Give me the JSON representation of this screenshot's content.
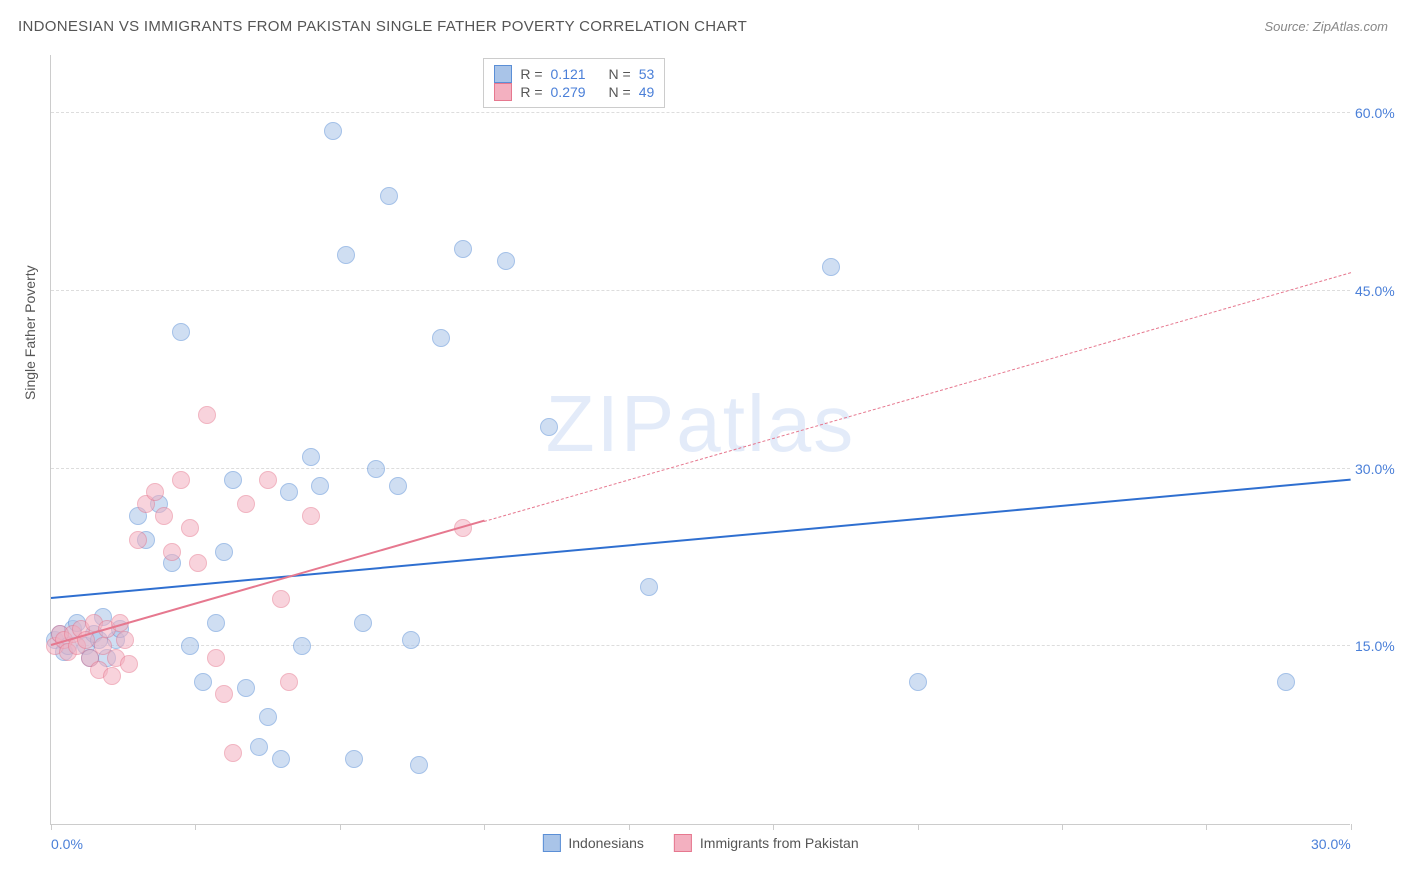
{
  "title": "INDONESIAN VS IMMIGRANTS FROM PAKISTAN SINGLE FATHER POVERTY CORRELATION CHART",
  "source": "Source: ZipAtlas.com",
  "watermark": "ZIPatlas",
  "y_axis_label": "Single Father Poverty",
  "chart": {
    "type": "scatter",
    "xlim": [
      0,
      30
    ],
    "ylim": [
      0,
      65
    ],
    "x_ticks": [
      0,
      3.33,
      6.66,
      10,
      13.33,
      16.66,
      20,
      23.33,
      26.66,
      30
    ],
    "x_tick_labels": {
      "0": "0.0%",
      "30": "30.0%"
    },
    "y_gridlines": [
      15,
      30,
      45,
      60
    ],
    "y_tick_labels": {
      "15": "15.0%",
      "30": "30.0%",
      "45": "45.0%",
      "60": "60.0%"
    },
    "background_color": "#ffffff",
    "grid_color": "#dddddd",
    "axis_color": "#cccccc",
    "point_radius": 9,
    "point_opacity": 0.55,
    "series": [
      {
        "name": "Indonesians",
        "color_fill": "#a9c4e8",
        "color_stroke": "#5b8fd6",
        "r_value": "0.121",
        "n_value": "53",
        "trend": {
          "x1": 0,
          "y1": 19,
          "x2": 30,
          "y2": 29,
          "solid_until_x": 30,
          "width": 2.5,
          "color": "#2f6fd0"
        },
        "points": [
          [
            0.1,
            15.5
          ],
          [
            0.2,
            16
          ],
          [
            0.3,
            14.5
          ],
          [
            0.4,
            15
          ],
          [
            0.5,
            16.5
          ],
          [
            0.6,
            17
          ],
          [
            0.8,
            15
          ],
          [
            0.9,
            14
          ],
          [
            1.0,
            16
          ],
          [
            1.1,
            15.5
          ],
          [
            1.2,
            17.5
          ],
          [
            1.3,
            14
          ],
          [
            1.5,
            15.5
          ],
          [
            1.6,
            16.5
          ],
          [
            2.0,
            26
          ],
          [
            2.2,
            24
          ],
          [
            2.5,
            27
          ],
          [
            2.8,
            22
          ],
          [
            3.0,
            41.5
          ],
          [
            3.2,
            15
          ],
          [
            3.5,
            12
          ],
          [
            3.8,
            17
          ],
          [
            4.0,
            23
          ],
          [
            4.2,
            29
          ],
          [
            4.5,
            11.5
          ],
          [
            4.8,
            6.5
          ],
          [
            5.0,
            9
          ],
          [
            5.3,
            5.5
          ],
          [
            5.5,
            28
          ],
          [
            5.8,
            15
          ],
          [
            6.0,
            31
          ],
          [
            6.2,
            28.5
          ],
          [
            6.5,
            58.5
          ],
          [
            6.8,
            48
          ],
          [
            7.0,
            5.5
          ],
          [
            7.2,
            17
          ],
          [
            7.5,
            30
          ],
          [
            7.8,
            53
          ],
          [
            8.0,
            28.5
          ],
          [
            8.3,
            15.5
          ],
          [
            8.5,
            5
          ],
          [
            9.0,
            41
          ],
          [
            9.5,
            48.5
          ],
          [
            10.5,
            47.5
          ],
          [
            11.5,
            33.5
          ],
          [
            13.8,
            20
          ],
          [
            18.0,
            47
          ],
          [
            20.0,
            12
          ],
          [
            28.5,
            12
          ]
        ]
      },
      {
        "name": "Immigrants from Pakistan",
        "color_fill": "#f3b0c0",
        "color_stroke": "#e6788f",
        "r_value": "0.279",
        "n_value": "49",
        "trend": {
          "x1": 0,
          "y1": 15,
          "x2": 30,
          "y2": 46.5,
          "solid_until_x": 10,
          "width": 2,
          "color": "#e6788f"
        },
        "points": [
          [
            0.1,
            15
          ],
          [
            0.2,
            16
          ],
          [
            0.3,
            15.5
          ],
          [
            0.4,
            14.5
          ],
          [
            0.5,
            16
          ],
          [
            0.6,
            15
          ],
          [
            0.7,
            16.5
          ],
          [
            0.8,
            15.5
          ],
          [
            0.9,
            14
          ],
          [
            1.0,
            17
          ],
          [
            1.1,
            13
          ],
          [
            1.2,
            15
          ],
          [
            1.3,
            16.5
          ],
          [
            1.4,
            12.5
          ],
          [
            1.5,
            14
          ],
          [
            1.6,
            17
          ],
          [
            1.7,
            15.5
          ],
          [
            1.8,
            13.5
          ],
          [
            2.0,
            24
          ],
          [
            2.2,
            27
          ],
          [
            2.4,
            28
          ],
          [
            2.6,
            26
          ],
          [
            2.8,
            23
          ],
          [
            3.0,
            29
          ],
          [
            3.2,
            25
          ],
          [
            3.4,
            22
          ],
          [
            3.6,
            34.5
          ],
          [
            3.8,
            14
          ],
          [
            4.0,
            11
          ],
          [
            4.2,
            6
          ],
          [
            4.5,
            27
          ],
          [
            5.0,
            29
          ],
          [
            5.3,
            19
          ],
          [
            5.5,
            12
          ],
          [
            6.0,
            26
          ],
          [
            9.5,
            25
          ]
        ]
      }
    ]
  },
  "legend_top": {
    "r_label": "R =",
    "n_label": "N ="
  },
  "legend_bottom": {
    "items": [
      "Indonesians",
      "Immigrants from Pakistan"
    ]
  }
}
